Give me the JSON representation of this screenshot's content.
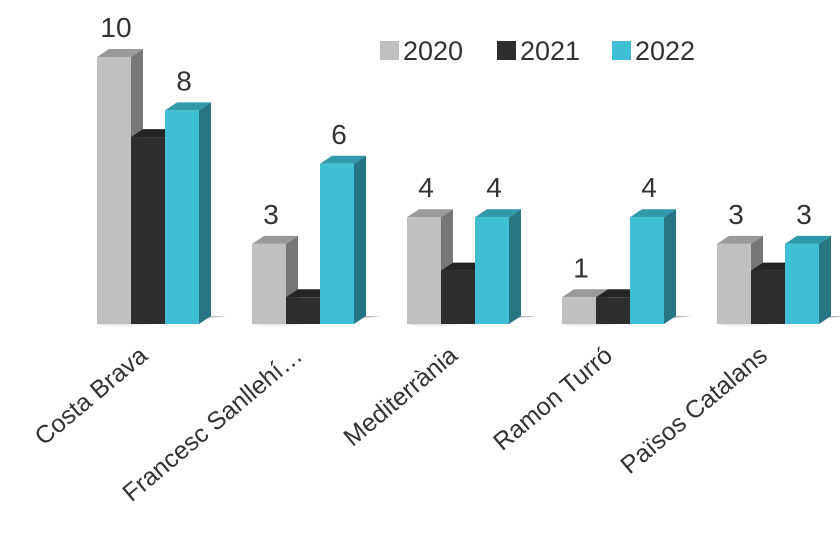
{
  "chart_data": {
    "type": "bar",
    "title": "",
    "xlabel": "",
    "ylabel": "",
    "categories": [
      "Costa Brava",
      "Francesc Sanllehí…",
      "Mediterrània",
      "Ramon Turró",
      "Països Catalans"
    ],
    "series": [
      {
        "name": "2020",
        "color": "#c0c0c0",
        "values": [
          10,
          3,
          4,
          1,
          3
        ],
        "labels": [
          "10",
          "3",
          "4",
          "1",
          "3"
        ]
      },
      {
        "name": "2021",
        "color": "#2e2e2e",
        "values": [
          7,
          1,
          2,
          1,
          2
        ],
        "labels": [
          "",
          "",
          "",
          "",
          ""
        ]
      },
      {
        "name": "2022",
        "color": "#3fbfd4",
        "values": [
          8,
          6,
          4,
          4,
          3
        ],
        "labels": [
          "8",
          "6",
          "4",
          "4",
          "3"
        ]
      }
    ],
    "ylim": [
      0,
      10
    ],
    "grid": false,
    "legend_position": "top-right"
  }
}
